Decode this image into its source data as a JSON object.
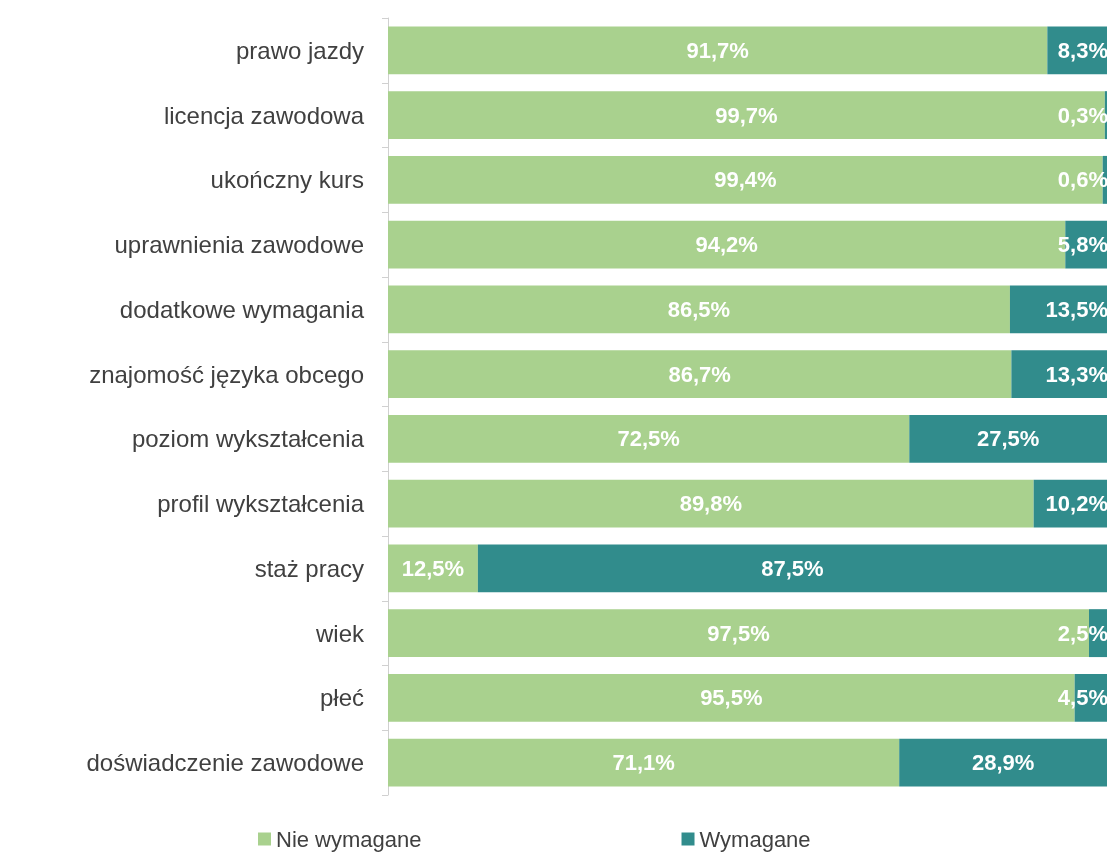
{
  "chart_data": {
    "type": "bar",
    "orientation": "horizontal",
    "stacked": true,
    "categories": [
      "prawo jazdy",
      "licencja zawodowa",
      "ukończny kurs",
      "uprawnienia zawodowe",
      "dodatkowe wymagania",
      "znajomość języka obcego",
      "poziom wykształcenia",
      "profil wykształcenia",
      "staż pracy",
      "wiek",
      "płeć",
      "doświadczenie zawodowe"
    ],
    "series": [
      {
        "name": "Nie wymagane",
        "color": "#a9d18e",
        "values": [
          91.7,
          99.7,
          99.4,
          94.2,
          86.5,
          86.7,
          72.5,
          89.8,
          12.5,
          97.5,
          95.5,
          71.1
        ],
        "value_labels": [
          "91,7%",
          "99,7%",
          "99,4%",
          "94,2%",
          "86,5%",
          "86,7%",
          "72,5%",
          "89,8%",
          "12,5%",
          "97,5%",
          "95,5%",
          "71,1%"
        ]
      },
      {
        "name": "Wymagane",
        "color": "#318c8c",
        "values": [
          8.3,
          0.3,
          0.6,
          5.8,
          13.5,
          13.3,
          27.5,
          10.2,
          87.5,
          2.5,
          4.5,
          28.9
        ],
        "value_labels": [
          "8,3%",
          "0,3%",
          "0,6%",
          "5,8%",
          "13,5%",
          "13,3%",
          "27,5%",
          "10,2%",
          "87,5%",
          "2,5%",
          "4,5%",
          "28,9%"
        ]
      }
    ],
    "legend": "bottom",
    "grid": false
  }
}
